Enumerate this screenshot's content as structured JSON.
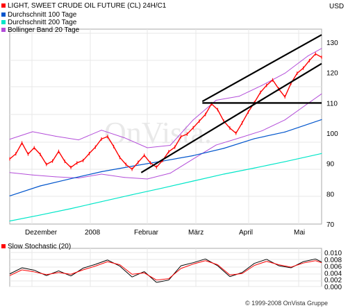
{
  "chart_data": [
    {
      "type": "line",
      "title": "LIGHT, SWEET CRUDE OIL FUTURE (CL) 24H/C1",
      "currency": "USD",
      "legend": [
        {
          "label": "LIGHT, SWEET CRUDE OIL FUTURE (CL) 24H/C1",
          "color": "#ff0000"
        },
        {
          "label": "Durchschnitt 100 Tage",
          "color": "#0055cc"
        },
        {
          "label": "Durchschnitt 200 Tage",
          "color": "#00e6c8"
        },
        {
          "label": "Bollinger Band 20 Tage",
          "color": "#b34dd9"
        }
      ],
      "x_labels": [
        "Dezember",
        "2008",
        "Februar",
        "März",
        "April",
        "Mai"
      ],
      "y_ticks": [
        70,
        80,
        90,
        100,
        110,
        120,
        130
      ],
      "ylim": [
        70,
        133
      ],
      "grid": true,
      "legend_position": "top-left",
      "price_series": [
        {
          "x": 0,
          "y": 91.5
        },
        {
          "x": 4,
          "y": 93.2
        },
        {
          "x": 8,
          "y": 96.8
        },
        {
          "x": 12,
          "y": 93.1
        },
        {
          "x": 16,
          "y": 95.2
        },
        {
          "x": 20,
          "y": 93.0
        },
        {
          "x": 24,
          "y": 89.7
        },
        {
          "x": 28,
          "y": 90.8
        },
        {
          "x": 32,
          "y": 94.0
        },
        {
          "x": 36,
          "y": 90.7
        },
        {
          "x": 40,
          "y": 88.7
        },
        {
          "x": 44,
          "y": 90.2
        },
        {
          "x": 48,
          "y": 91.0
        },
        {
          "x": 52,
          "y": 93.3
        },
        {
          "x": 56,
          "y": 95.4
        },
        {
          "x": 60,
          "y": 98.1
        },
        {
          "x": 64,
          "y": 98.9
        },
        {
          "x": 68,
          "y": 95.6
        },
        {
          "x": 72,
          "y": 92.0
        },
        {
          "x": 76,
          "y": 89.7
        },
        {
          "x": 80,
          "y": 88.1
        },
        {
          "x": 84,
          "y": 90.4
        },
        {
          "x": 88,
          "y": 92.7
        },
        {
          "x": 92,
          "y": 90.2
        },
        {
          "x": 96,
          "y": 88.8
        },
        {
          "x": 100,
          "y": 91.0
        },
        {
          "x": 104,
          "y": 93.9
        },
        {
          "x": 108,
          "y": 95.4
        },
        {
          "x": 112,
          "y": 98.9
        },
        {
          "x": 116,
          "y": 99.7
        },
        {
          "x": 120,
          "y": 101.8
        },
        {
          "x": 124,
          "y": 104.0
        },
        {
          "x": 128,
          "y": 106.2
        },
        {
          "x": 132,
          "y": 109.7
        },
        {
          "x": 136,
          "y": 107.8
        },
        {
          "x": 140,
          "y": 104.0
        },
        {
          "x": 144,
          "y": 101.7
        },
        {
          "x": 148,
          "y": 100.0
        },
        {
          "x": 152,
          "y": 103.4
        },
        {
          "x": 156,
          "y": 107.0
        },
        {
          "x": 160,
          "y": 110.1
        },
        {
          "x": 164,
          "y": 113.5
        },
        {
          "x": 168,
          "y": 115.8
        },
        {
          "x": 172,
          "y": 117.6
        },
        {
          "x": 176,
          "y": 114.6
        },
        {
          "x": 180,
          "y": 112.0
        },
        {
          "x": 184,
          "y": 116.5
        },
        {
          "x": 188,
          "y": 119.8
        },
        {
          "x": 192,
          "y": 121.5
        },
        {
          "x": 196,
          "y": 124.0
        },
        {
          "x": 200,
          "y": 126.2
        },
        {
          "x": 204,
          "y": 125.1
        }
      ],
      "ma100": [
        {
          "x": 0,
          "y": 79.3
        },
        {
          "x": 20,
          "y": 82.6
        },
        {
          "x": 40,
          "y": 85.0
        },
        {
          "x": 60,
          "y": 87.3
        },
        {
          "x": 80,
          "y": 89.1
        },
        {
          "x": 100,
          "y": 90.8
        },
        {
          "x": 120,
          "y": 92.6
        },
        {
          "x": 140,
          "y": 95.0
        },
        {
          "x": 160,
          "y": 98.2
        },
        {
          "x": 180,
          "y": 100.4
        },
        {
          "x": 204,
          "y": 104.5
        }
      ],
      "ma200": [
        {
          "x": 0,
          "y": 71.0
        },
        {
          "x": 20,
          "y": 73.0
        },
        {
          "x": 40,
          "y": 75.1
        },
        {
          "x": 60,
          "y": 77.4
        },
        {
          "x": 80,
          "y": 79.7
        },
        {
          "x": 100,
          "y": 81.9
        },
        {
          "x": 120,
          "y": 84.2
        },
        {
          "x": 140,
          "y": 86.5
        },
        {
          "x": 160,
          "y": 88.5
        },
        {
          "x": 180,
          "y": 90.6
        },
        {
          "x": 204,
          "y": 93.3
        }
      ],
      "bollinger_upper": [
        {
          "x": 0,
          "y": 98.0
        },
        {
          "x": 15,
          "y": 100.5
        },
        {
          "x": 30,
          "y": 99.0
        },
        {
          "x": 45,
          "y": 97.8
        },
        {
          "x": 60,
          "y": 101.0
        },
        {
          "x": 75,
          "y": 98.5
        },
        {
          "x": 90,
          "y": 95.2
        },
        {
          "x": 105,
          "y": 96.0
        },
        {
          "x": 120,
          "y": 104.4
        },
        {
          "x": 135,
          "y": 110.9
        },
        {
          "x": 150,
          "y": 112.2
        },
        {
          "x": 165,
          "y": 115.8
        },
        {
          "x": 180,
          "y": 119.8
        },
        {
          "x": 195,
          "y": 125.5
        },
        {
          "x": 204,
          "y": 128.0
        }
      ],
      "bollinger_lower": [
        {
          "x": 0,
          "y": 87.0
        },
        {
          "x": 15,
          "y": 86.2
        },
        {
          "x": 30,
          "y": 85.6
        },
        {
          "x": 45,
          "y": 85.2
        },
        {
          "x": 60,
          "y": 86.5
        },
        {
          "x": 75,
          "y": 85.4
        },
        {
          "x": 90,
          "y": 84.9
        },
        {
          "x": 105,
          "y": 86.8
        },
        {
          "x": 120,
          "y": 91.5
        },
        {
          "x": 135,
          "y": 96.1
        },
        {
          "x": 150,
          "y": 98.4
        },
        {
          "x": 165,
          "y": 100.8
        },
        {
          "x": 180,
          "y": 104.4
        },
        {
          "x": 195,
          "y": 109.8
        },
        {
          "x": 204,
          "y": 113.0
        }
      ],
      "trendlines": [
        {
          "points": [
            {
              "x": 86,
              "y": 87.0
            },
            {
              "x": 204,
              "y": 123.0
            }
          ]
        },
        {
          "points": [
            {
              "x": 126,
              "y": 110.0
            },
            {
              "x": 204,
              "y": 110.0
            }
          ]
        },
        {
          "points": [
            {
              "x": 126,
              "y": 110.5
            },
            {
              "x": 204,
              "y": 132.5
            }
          ]
        }
      ]
    },
    {
      "type": "line",
      "title": "Slow Stochastic (20)",
      "legend_color": "#ff0000",
      "y_ticks": [
        0.0,
        0.002,
        0.004,
        0.006,
        0.008,
        0.01
      ],
      "ylim": [
        0.0,
        0.01
      ],
      "grid": true,
      "series": [
        {
          "color": "#000000",
          "values": [
            {
              "x": 0,
              "y": 0.0037
            },
            {
              "x": 8,
              "y": 0.0055
            },
            {
              "x": 16,
              "y": 0.0048
            },
            {
              "x": 24,
              "y": 0.0032
            },
            {
              "x": 32,
              "y": 0.0046
            },
            {
              "x": 40,
              "y": 0.0031
            },
            {
              "x": 48,
              "y": 0.0054
            },
            {
              "x": 56,
              "y": 0.0065
            },
            {
              "x": 64,
              "y": 0.0078
            },
            {
              "x": 72,
              "y": 0.006
            },
            {
              "x": 80,
              "y": 0.0028
            },
            {
              "x": 88,
              "y": 0.0044
            },
            {
              "x": 96,
              "y": 0.0012
            },
            {
              "x": 104,
              "y": 0.0019
            },
            {
              "x": 112,
              "y": 0.0061
            },
            {
              "x": 120,
              "y": 0.007
            },
            {
              "x": 128,
              "y": 0.0081
            },
            {
              "x": 136,
              "y": 0.0061
            },
            {
              "x": 144,
              "y": 0.0029
            },
            {
              "x": 152,
              "y": 0.0041
            },
            {
              "x": 160,
              "y": 0.0068
            },
            {
              "x": 168,
              "y": 0.008
            },
            {
              "x": 176,
              "y": 0.0061
            },
            {
              "x": 184,
              "y": 0.0055
            },
            {
              "x": 192,
              "y": 0.0073
            },
            {
              "x": 200,
              "y": 0.0081
            },
            {
              "x": 204,
              "y": 0.0072
            }
          ]
        },
        {
          "color": "#ff0000",
          "values": [
            {
              "x": 0,
              "y": 0.0032
            },
            {
              "x": 8,
              "y": 0.0049
            },
            {
              "x": 16,
              "y": 0.0043
            },
            {
              "x": 24,
              "y": 0.0035
            },
            {
              "x": 32,
              "y": 0.0041
            },
            {
              "x": 40,
              "y": 0.0036
            },
            {
              "x": 48,
              "y": 0.0049
            },
            {
              "x": 56,
              "y": 0.006
            },
            {
              "x": 64,
              "y": 0.0073
            },
            {
              "x": 72,
              "y": 0.0064
            },
            {
              "x": 80,
              "y": 0.0036
            },
            {
              "x": 88,
              "y": 0.004
            },
            {
              "x": 96,
              "y": 0.0019
            },
            {
              "x": 104,
              "y": 0.0023
            },
            {
              "x": 112,
              "y": 0.0053
            },
            {
              "x": 120,
              "y": 0.0066
            },
            {
              "x": 128,
              "y": 0.0076
            },
            {
              "x": 136,
              "y": 0.0064
            },
            {
              "x": 144,
              "y": 0.0034
            },
            {
              "x": 152,
              "y": 0.0038
            },
            {
              "x": 160,
              "y": 0.0062
            },
            {
              "x": 168,
              "y": 0.0074
            },
            {
              "x": 176,
              "y": 0.0064
            },
            {
              "x": 184,
              "y": 0.0057
            },
            {
              "x": 192,
              "y": 0.0069
            },
            {
              "x": 200,
              "y": 0.0076
            },
            {
              "x": 204,
              "y": 0.007
            }
          ]
        }
      ]
    }
  ],
  "footer": {
    "copyright": "© 1999-2008 OnVista Gruppe"
  },
  "watermark": {
    "text": "OnVista."
  }
}
